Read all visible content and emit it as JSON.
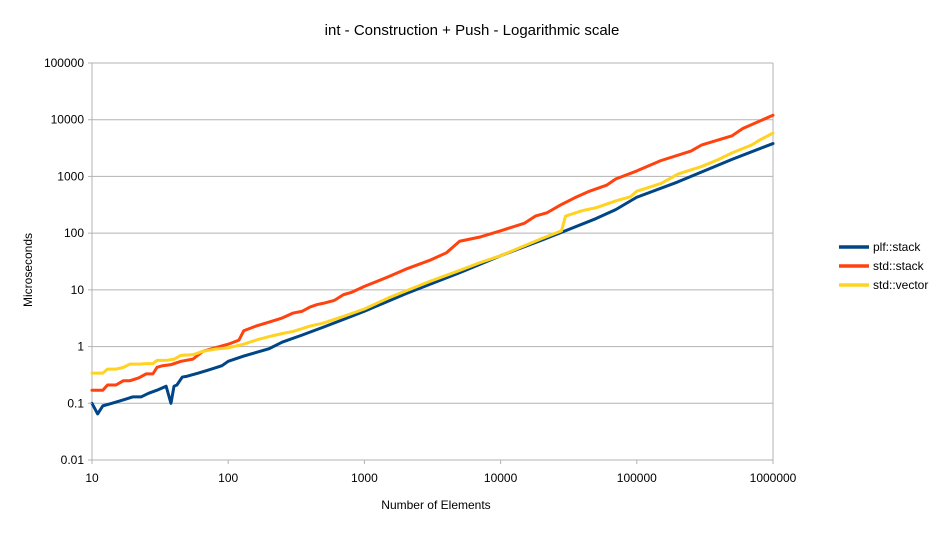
{
  "chart_data": {
    "type": "line",
    "title": "int - Construction + Push - Logarithmic scale",
    "xlabel": "Number of Elements",
    "ylabel": "Microseconds",
    "x_scale": "log",
    "y_scale": "log",
    "xlim": [
      10,
      1000000
    ],
    "ylim": [
      0.01,
      100000
    ],
    "x_ticks": [
      "10",
      "100",
      "1000",
      "10000",
      "100000",
      "1000000"
    ],
    "y_ticks": [
      "0.01",
      "0.1",
      "1",
      "10",
      "100",
      "1000",
      "10000",
      "100000"
    ],
    "grid": "horizontal",
    "legend_position": "right",
    "series": [
      {
        "name": "plf::stack",
        "color": "#004586",
        "x": [
          10,
          11,
          12,
          14,
          16,
          18,
          20,
          23,
          26,
          30,
          35,
          38,
          40,
          42,
          46,
          50,
          60,
          70,
          80,
          90,
          100,
          130,
          200,
          250,
          350,
          500,
          700,
          1000,
          2000,
          5000,
          7000,
          10000,
          20000,
          50000,
          70000,
          100000,
          200000,
          500000,
          1000000
        ],
        "y": [
          0.1,
          0.065,
          0.09,
          0.1,
          0.11,
          0.12,
          0.13,
          0.13,
          0.15,
          0.17,
          0.2,
          0.1,
          0.2,
          0.21,
          0.29,
          0.3,
          0.34,
          0.38,
          0.42,
          0.46,
          0.55,
          0.68,
          0.92,
          1.2,
          1.6,
          2.2,
          3.0,
          4.2,
          8.5,
          20,
          28,
          40,
          75,
          180,
          260,
          430,
          800,
          2000,
          3800
        ]
      },
      {
        "name": "std::stack",
        "color": "#ff420e",
        "x": [
          10,
          11,
          12,
          13,
          15,
          17,
          19,
          22,
          25,
          28,
          30,
          33,
          38,
          45,
          55,
          65,
          80,
          100,
          120,
          130,
          160,
          200,
          250,
          300,
          350,
          400,
          450,
          500,
          600,
          700,
          800,
          1000,
          1500,
          2000,
          3000,
          4000,
          5000,
          7000,
          10000,
          15000,
          18000,
          22000,
          28000,
          35000,
          45000,
          60000,
          70000,
          100000,
          150000,
          250000,
          300000,
          500000,
          600000,
          1000000
        ],
        "y": [
          0.17,
          0.17,
          0.17,
          0.21,
          0.21,
          0.25,
          0.25,
          0.28,
          0.33,
          0.33,
          0.43,
          0.46,
          0.48,
          0.55,
          0.6,
          0.82,
          0.95,
          1.1,
          1.3,
          1.9,
          2.3,
          2.7,
          3.2,
          3.9,
          4.2,
          5.0,
          5.5,
          5.8,
          6.5,
          8.2,
          9.0,
          11.5,
          17,
          23,
          33,
          45,
          72,
          85,
          110,
          150,
          200,
          230,
          320,
          420,
          550,
          700,
          900,
          1250,
          1900,
          2800,
          3600,
          5200,
          7000,
          12000
        ]
      },
      {
        "name": "std::vector",
        "color": "#ffd320",
        "x": [
          10,
          11,
          12,
          13,
          15,
          17,
          19,
          22,
          25,
          28,
          30,
          35,
          40,
          45,
          55,
          65,
          80,
          100,
          130,
          160,
          200,
          250,
          300,
          400,
          500,
          700,
          1000,
          1500,
          2000,
          3000,
          5000,
          7000,
          10000,
          20000,
          28000,
          30000,
          40000,
          50000,
          70000,
          90000,
          100000,
          150000,
          180000,
          200000,
          300000,
          400000,
          500000,
          700000,
          800000,
          1000000
        ],
        "y": [
          0.34,
          0.34,
          0.34,
          0.4,
          0.4,
          0.43,
          0.49,
          0.49,
          0.5,
          0.5,
          0.57,
          0.57,
          0.6,
          0.7,
          0.72,
          0.82,
          0.9,
          0.95,
          1.1,
          1.3,
          1.5,
          1.7,
          1.85,
          2.3,
          2.6,
          3.4,
          4.6,
          7.2,
          9.5,
          14,
          22,
          30,
          40,
          80,
          110,
          200,
          250,
          280,
          370,
          440,
          550,
          750,
          950,
          1100,
          1500,
          2000,
          2600,
          3600,
          4400,
          5800
        ]
      }
    ]
  }
}
